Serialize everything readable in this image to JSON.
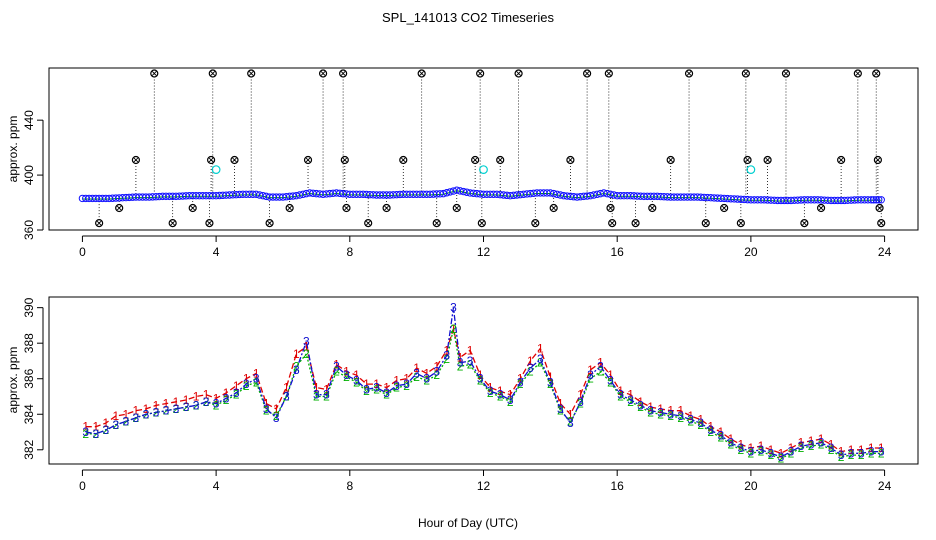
{
  "figure": {
    "title": "SPL_141013  CO2 Timeseries",
    "xlabel": "Hour of Day (UTC)"
  },
  "chart_data": [
    {
      "type": "scatter",
      "panel": "top",
      "title": "SPL_141013  CO2 Timeseries",
      "xlabel": "",
      "ylabel": "approx. ppm",
      "xlim": [
        -1,
        25
      ],
      "ylim": [
        360,
        478
      ],
      "xticks": [
        0,
        4,
        8,
        12,
        16,
        20,
        24
      ],
      "yticks": [
        360,
        400,
        440
      ],
      "grid": false,
      "colors": {
        "mean": "#1010ff",
        "smooth": "#00a000",
        "outlier": "#000000",
        "flag": "#00d0d0"
      },
      "series": [
        {
          "name": "mean",
          "marker": "circle",
          "x": [
            0.0,
            0.4,
            0.8,
            1.2,
            1.6,
            2.0,
            2.4,
            2.8,
            3.2,
            3.6,
            4.0,
            4.4,
            4.8,
            5.2,
            5.6,
            6.0,
            6.4,
            6.8,
            7.2,
            7.6,
            8.0,
            8.4,
            8.8,
            9.2,
            9.6,
            10.0,
            10.4,
            10.8,
            11.2,
            11.6,
            12.0,
            12.4,
            12.8,
            13.2,
            13.6,
            14.0,
            14.4,
            14.8,
            15.2,
            15.6,
            16.0,
            16.4,
            16.8,
            17.2,
            17.6,
            18.0,
            18.4,
            18.8,
            19.2,
            19.6,
            20.0,
            20.4,
            20.8,
            21.2,
            21.6,
            22.0,
            22.4,
            22.8,
            23.2,
            23.6,
            23.9
          ],
          "y": [
            383,
            383,
            383,
            383.5,
            384,
            384,
            384.5,
            384.5,
            385,
            385,
            385,
            385.5,
            386,
            386,
            384,
            384,
            385,
            387,
            386,
            387,
            386,
            386,
            385.5,
            385.5,
            386,
            386,
            386,
            386.5,
            389,
            387,
            386,
            386,
            385,
            386,
            387,
            387,
            385,
            384,
            385,
            387,
            385,
            385,
            384.5,
            384.5,
            384,
            384,
            384,
            383.5,
            383,
            382.5,
            382,
            382,
            381.5,
            381.5,
            382,
            382,
            381.5,
            381.5,
            382,
            382,
            382
          ]
        },
        {
          "name": "outliers",
          "marker": "circle",
          "x": [
            0.5,
            1.1,
            1.6,
            2.15,
            2.7,
            3.3,
            3.8,
            3.85,
            3.9,
            4.55,
            5.05,
            5.6,
            6.2,
            6.75,
            7.2,
            7.8,
            7.85,
            7.9,
            8.55,
            9.1,
            9.6,
            10.15,
            10.6,
            11.2,
            11.75,
            11.9,
            11.95,
            12.5,
            13.05,
            13.55,
            14.1,
            14.6,
            15.1,
            15.75,
            15.8,
            15.85,
            16.55,
            17.05,
            17.6,
            18.15,
            18.65,
            19.2,
            19.7,
            19.85,
            19.9,
            20.5,
            21.05,
            21.6,
            22.1,
            22.7,
            23.2,
            23.75,
            23.8,
            23.85,
            23.9
          ],
          "y": [
            365,
            376,
            411,
            474,
            365,
            376,
            365,
            411,
            474,
            411,
            474,
            365,
            376,
            411,
            474,
            474,
            411,
            376,
            365,
            376,
            411,
            474,
            365,
            376,
            411,
            474,
            365,
            411,
            474,
            365,
            376,
            411,
            474,
            474,
            376,
            365,
            365,
            376,
            411,
            474,
            365,
            376,
            365,
            474,
            411,
            411,
            474,
            365,
            376,
            411,
            474,
            474,
            411,
            376,
            365
          ]
        },
        {
          "name": "flagged",
          "marker": "circle",
          "x": [
            4.0,
            12.0,
            20.0
          ],
          "y": [
            404,
            404,
            404
          ]
        }
      ]
    },
    {
      "type": "line",
      "panel": "bottom",
      "title": "",
      "xlabel": "Hour of Day (UTC)",
      "ylabel": "approx. ppm",
      "xlim": [
        -1,
        25
      ],
      "ylim": [
        381.2,
        390.6
      ],
      "xticks": [
        0,
        4,
        8,
        12,
        16,
        20,
        24
      ],
      "yticks": [
        382,
        384,
        386,
        388,
        390
      ],
      "grid": false,
      "x": [
        0.1,
        0.4,
        0.7,
        1.0,
        1.3,
        1.6,
        1.9,
        2.2,
        2.5,
        2.8,
        3.1,
        3.4,
        3.7,
        4.0,
        4.3,
        4.6,
        4.9,
        5.2,
        5.5,
        5.8,
        6.1,
        6.4,
        6.7,
        7.0,
        7.3,
        7.6,
        7.9,
        8.2,
        8.5,
        8.8,
        9.1,
        9.4,
        9.7,
        10.0,
        10.3,
        10.6,
        10.9,
        11.1,
        11.3,
        11.6,
        11.9,
        12.2,
        12.5,
        12.8,
        13.1,
        13.4,
        13.7,
        14.0,
        14.3,
        14.6,
        14.9,
        15.2,
        15.5,
        15.8,
        16.1,
        16.4,
        16.7,
        17.0,
        17.3,
        17.6,
        17.9,
        18.2,
        18.5,
        18.8,
        19.1,
        19.4,
        19.7,
        20.0,
        20.3,
        20.6,
        20.9,
        21.2,
        21.5,
        21.8,
        22.1,
        22.4,
        22.7,
        23.0,
        23.3,
        23.6,
        23.9
      ],
      "series": [
        {
          "name": "1",
          "label": "1",
          "color": "#e00000",
          "values": [
            383.3,
            383.3,
            383.5,
            383.9,
            384.0,
            384.2,
            384.3,
            384.5,
            384.6,
            384.7,
            384.8,
            385.0,
            385.1,
            384.9,
            385.2,
            385.6,
            386.0,
            386.3,
            384.6,
            384.3,
            385.5,
            387.4,
            387.8,
            385.5,
            385.4,
            386.8,
            386.4,
            386.2,
            385.7,
            385.7,
            385.5,
            385.9,
            386.0,
            386.6,
            386.3,
            386.7,
            387.6,
            388.8,
            387.2,
            387.6,
            386.2,
            385.5,
            385.3,
            385.1,
            386.0,
            387.0,
            387.7,
            386.1,
            384.6,
            384.0,
            385.1,
            386.5,
            386.9,
            386.2,
            385.3,
            385.1,
            384.7,
            384.4,
            384.3,
            384.2,
            384.2,
            383.9,
            383.7,
            383.3,
            383.0,
            382.6,
            382.3,
            382.1,
            382.2,
            382.0,
            381.8,
            382.1,
            382.4,
            382.5,
            382.6,
            382.3,
            381.9,
            382.0,
            382.0,
            382.1,
            382.1
          ]
        },
        {
          "name": "2",
          "label": "2",
          "color": "#00b000",
          "values": [
            382.9,
            382.9,
            383.1,
            383.4,
            383.6,
            383.8,
            384.0,
            384.1,
            384.2,
            384.3,
            384.4,
            384.5,
            384.7,
            384.5,
            384.8,
            385.1,
            385.6,
            385.8,
            384.2,
            383.9,
            385.0,
            386.7,
            387.4,
            385.0,
            385.0,
            386.4,
            386.1,
            385.8,
            385.3,
            385.4,
            385.1,
            385.5,
            385.6,
            386.1,
            385.9,
            386.2,
            387.1,
            388.8,
            386.7,
            386.8,
            385.9,
            385.2,
            385.0,
            384.7,
            385.7,
            386.4,
            386.9,
            385.7,
            384.2,
            383.6,
            384.6,
            386.0,
            386.4,
            385.8,
            385.0,
            384.7,
            384.4,
            384.1,
            384.0,
            383.9,
            383.8,
            383.6,
            383.4,
            383.0,
            382.7,
            382.3,
            382.0,
            381.8,
            381.9,
            381.7,
            381.5,
            381.8,
            382.1,
            382.2,
            382.3,
            382.0,
            381.6,
            381.7,
            381.7,
            381.8,
            381.8
          ]
        },
        {
          "name": "3",
          "label": "3",
          "color": "#1010d0",
          "values": [
            383.0,
            382.9,
            383.1,
            383.4,
            383.6,
            383.8,
            384.0,
            384.1,
            384.2,
            384.3,
            384.4,
            384.5,
            384.7,
            384.6,
            384.9,
            385.2,
            385.7,
            386.0,
            384.3,
            383.8,
            385.0,
            386.5,
            388.1,
            385.1,
            385.1,
            386.7,
            386.2,
            385.9,
            385.4,
            385.5,
            385.2,
            385.6,
            385.7,
            386.3,
            386.0,
            386.4,
            387.3,
            390.0,
            386.9,
            387.0,
            386.0,
            385.3,
            385.1,
            384.8,
            385.8,
            386.6,
            387.1,
            385.8,
            384.3,
            383.5,
            384.7,
            386.2,
            386.7,
            385.9,
            385.1,
            384.8,
            384.5,
            384.2,
            384.1,
            384.0,
            383.9,
            383.7,
            383.5,
            383.1,
            382.8,
            382.4,
            382.1,
            381.9,
            382.0,
            381.8,
            381.6,
            381.9,
            382.2,
            382.3,
            382.4,
            382.1,
            381.7,
            381.8,
            381.8,
            381.9,
            381.9
          ]
        }
      ]
    }
  ]
}
